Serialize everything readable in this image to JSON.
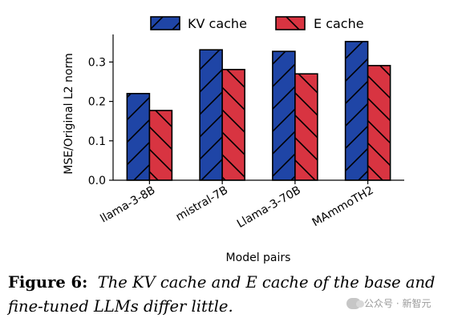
{
  "chart_data": {
    "type": "bar",
    "categories": [
      "llama-3-8B",
      "mistral-7B",
      "Llama-3-70B",
      "MAmmoTH2"
    ],
    "series": [
      {
        "name": "KV cache",
        "values": [
          0.22,
          0.331,
          0.327,
          0.352
        ],
        "color": "#1f45a6",
        "hatch": "forward-slash"
      },
      {
        "name": "E cache",
        "values": [
          0.177,
          0.281,
          0.27,
          0.291
        ],
        "color": "#d83441",
        "hatch": "back-slash"
      }
    ],
    "xlabel": "Model pairs",
    "ylabel": "MSE/Original L2 norm",
    "ylim": [
      0,
      0.37
    ],
    "yticks": [
      "0.0",
      "0.1",
      "0.2",
      "0.3"
    ],
    "legend_position": "top",
    "grid": false
  },
  "caption": {
    "label": "Figure 6:",
    "text": "The KV cache and E cache of the base and fine-tuned LLMs differ little."
  },
  "watermark": {
    "text": "公众号 · 新智元"
  }
}
